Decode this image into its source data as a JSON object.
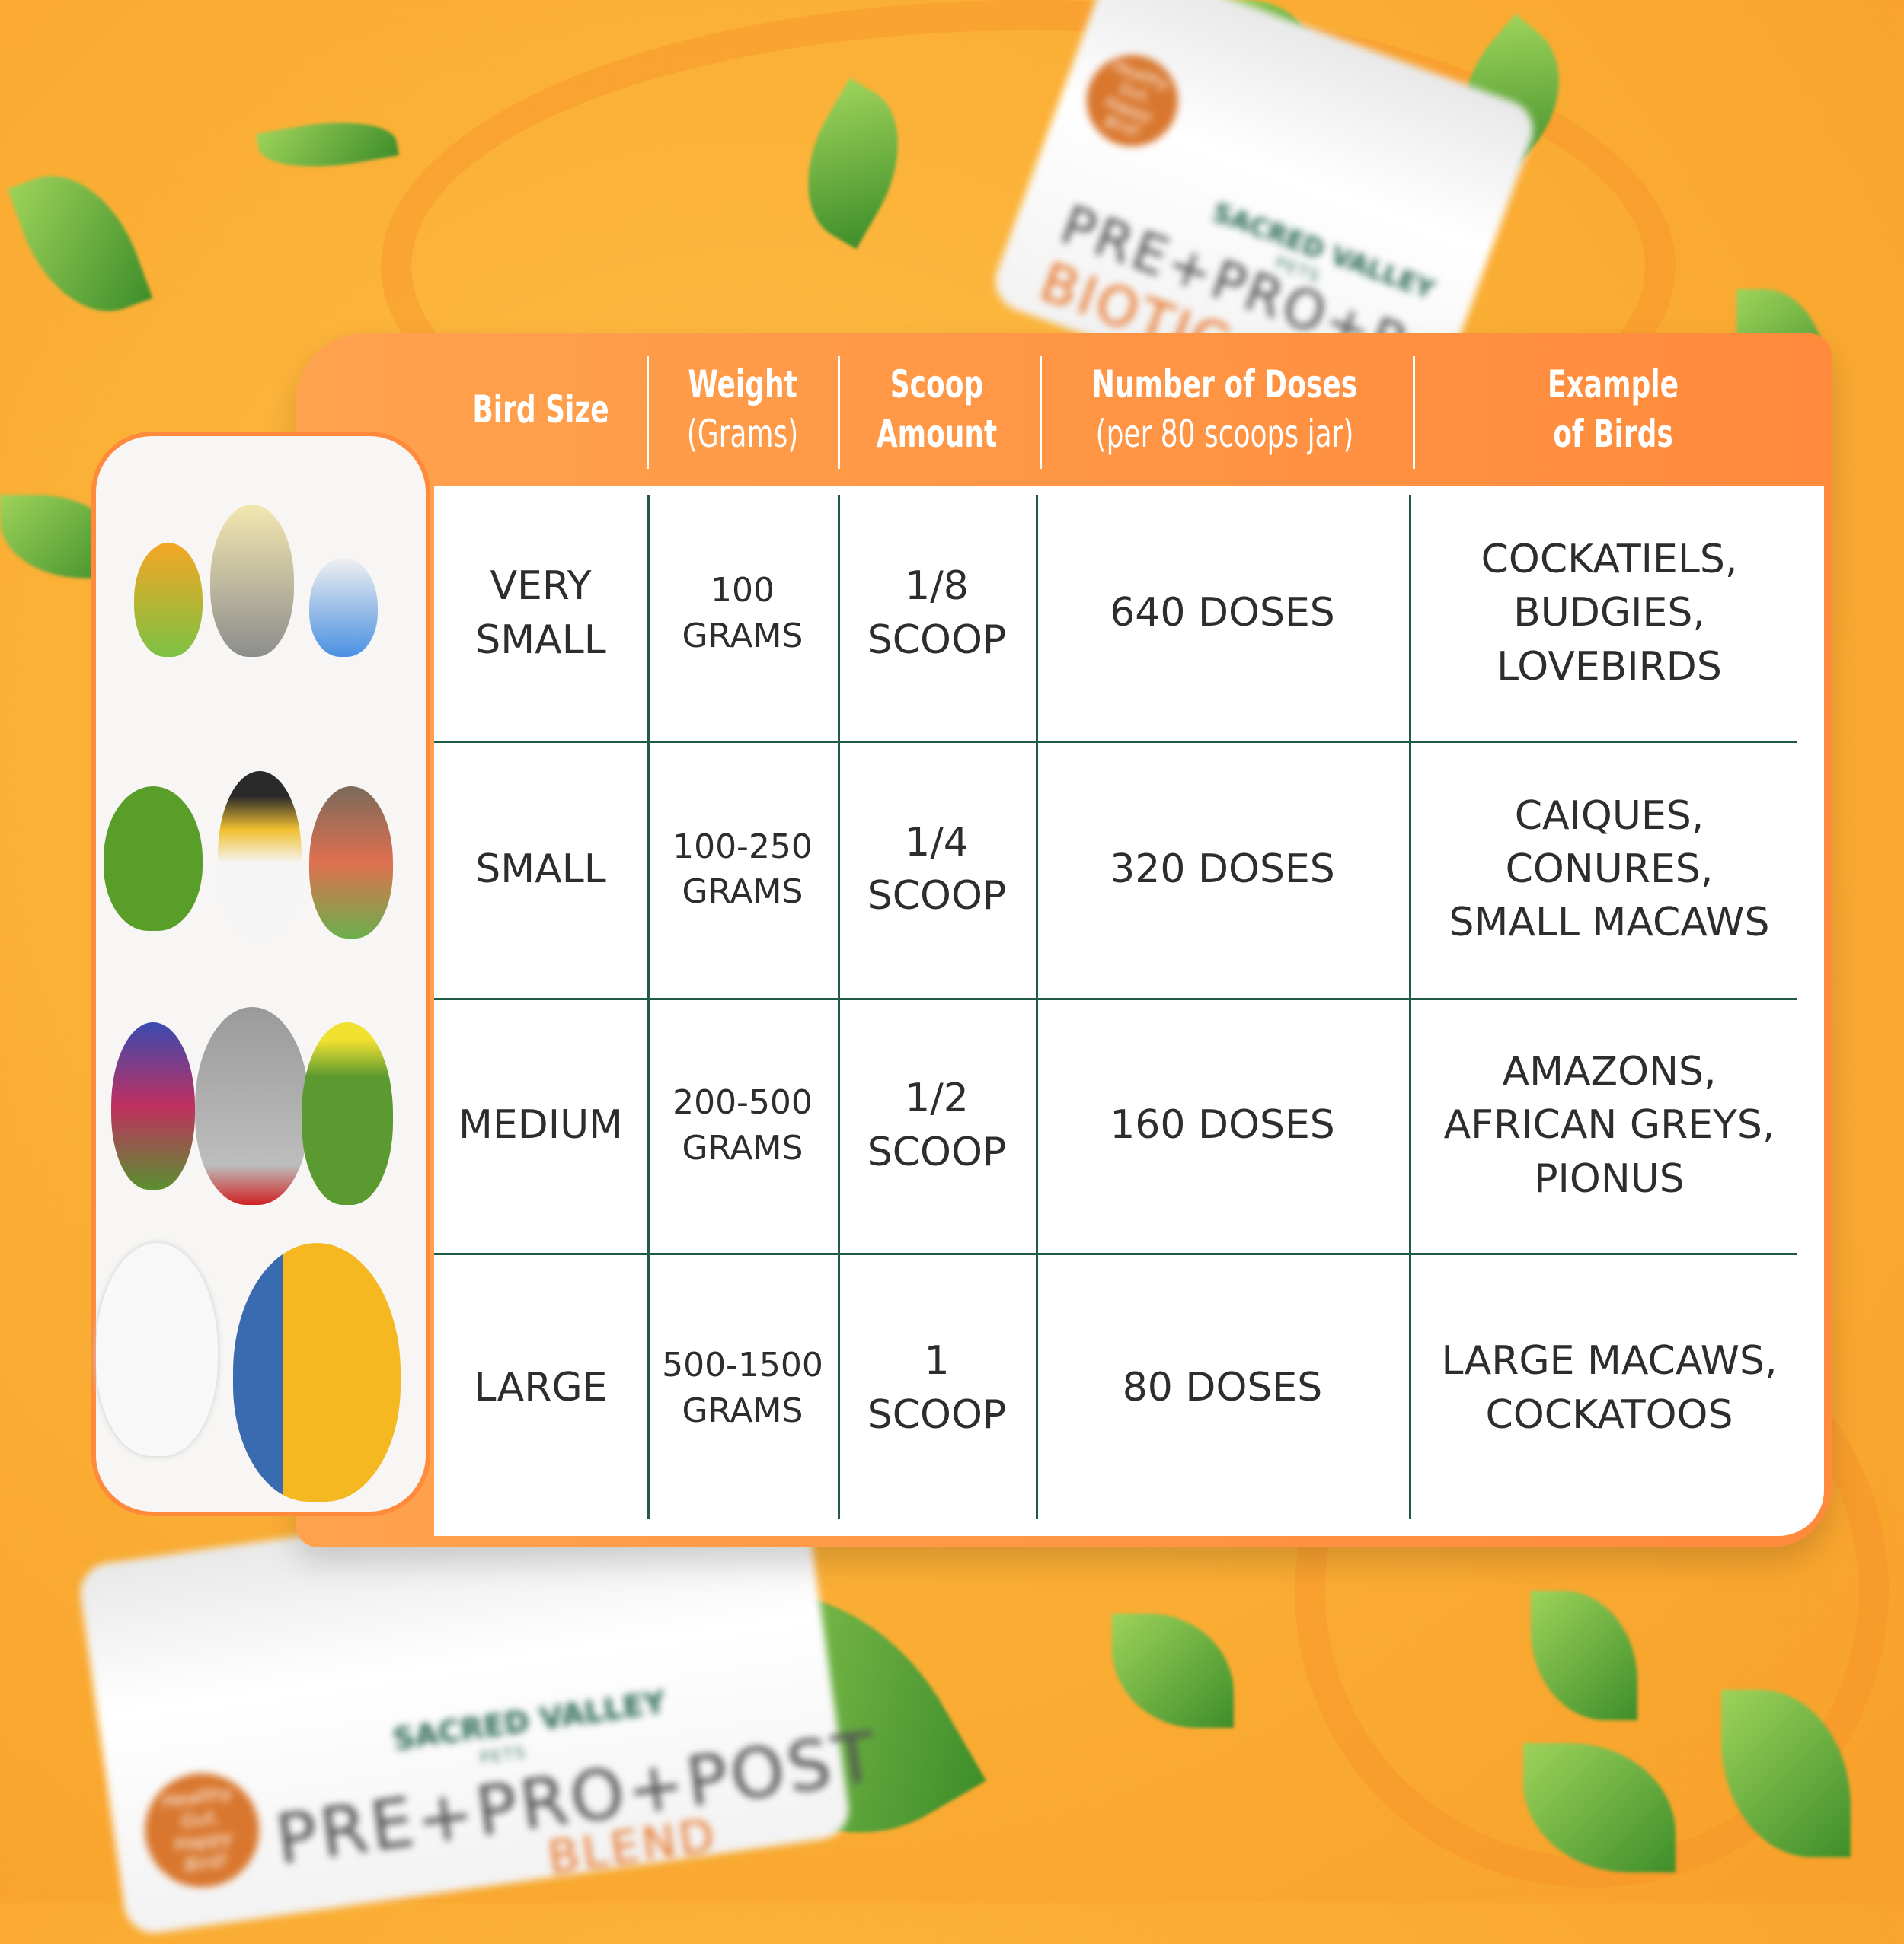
{
  "jar_top": {
    "brand": "SACRED VALLEY",
    "brand_sub": "PETS",
    "line1": "PRE+PRO+P",
    "line2": "BIOTIC",
    "badge": "Healthy Gut, Happy Bird!"
  },
  "jar_bottom": {
    "brand": "SACRED VALLEY",
    "brand_sub": "PETS",
    "line1": "PRE+PRO+POST",
    "line2": "BLEND",
    "badge": "Healthy Gut, Happy Bird!"
  },
  "table": {
    "headers": [
      "Bird Size",
      [
        "Weight",
        "(Grams)"
      ],
      [
        "Scoop",
        "Amount"
      ],
      [
        "Number of Doses",
        "(per 80 scoops jar)"
      ],
      [
        "Example",
        "of Birds"
      ]
    ],
    "rows": [
      {
        "size": [
          "VERY",
          "SMALL"
        ],
        "weight": [
          "100",
          "GRAMS"
        ],
        "scoop": [
          "1/8",
          "SCOOP"
        ],
        "doses": "640  DOSES",
        "examples": [
          "COCKATIELS,",
          "BUDGIES,",
          "LOVEBIRDS"
        ]
      },
      {
        "size": [
          "SMALL"
        ],
        "weight": [
          "100-250",
          "GRAMS"
        ],
        "scoop": [
          "1/4",
          "SCOOP"
        ],
        "doses": "320  DOSES",
        "examples": [
          "CAIQUES,",
          "CONURES,",
          "SMALL  MACAWS"
        ]
      },
      {
        "size": [
          "MEDIUM"
        ],
        "weight": [
          "200-500",
          "GRAMS"
        ],
        "scoop": [
          "1/2",
          "SCOOP"
        ],
        "doses": "160  DOSES",
        "examples": [
          "AMAZONS,",
          "AFRICAN  GREYS,",
          "PIONUS"
        ]
      },
      {
        "size": [
          "LARGE"
        ],
        "weight": [
          "500-1500",
          "GRAMS"
        ],
        "scoop": [
          "1",
          "SCOOP"
        ],
        "doses": "80  DOSES",
        "examples": [
          "LARGE  MACAWS,",
          "COCKATOOS"
        ]
      }
    ]
  },
  "colors": {
    "header": "#ff8f3f",
    "lines": "#1f5b45",
    "background": "#fbb036"
  }
}
